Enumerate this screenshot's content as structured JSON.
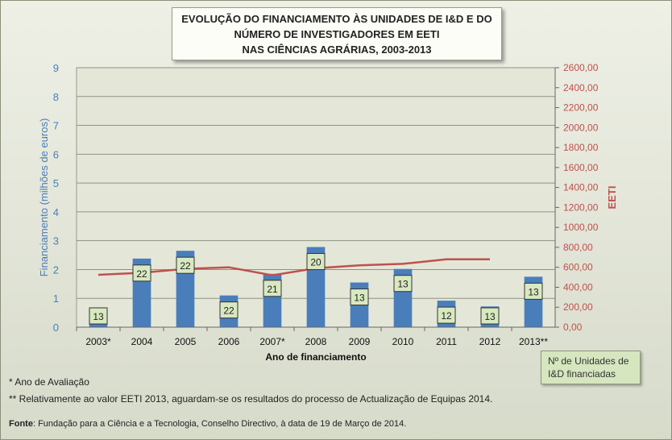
{
  "title": {
    "line1": "EVOLUÇÃO DO FINANCIAMENTO ÀS UNIDADES DE I&D E DO",
    "line2": "NÚMERO DE INVESTIGADORES EM EETI",
    "line3": "NAS CIÊNCIAS AGRÁRIAS, 2003-2013"
  },
  "legend_label": "Nº de Unidades de I&D  financiadas",
  "notes": {
    "note1": "* Ano de Avaliação",
    "note2": "** Relativamente ao valor EETI 2013, aguardam-se os resultados do processo de Actualização de Equipas 2014."
  },
  "source": {
    "label": "Fonte",
    "text": ": Fundação para a Ciência e a Tecnologia, Conselho Directivo, à data de 19 de Março de 2014."
  },
  "colors": {
    "bars": "#4a7ebb",
    "line": "#c0504d",
    "left_axis_text": "#4a7ebb",
    "right_axis_text": "#c0504d",
    "label_box": "#d8e8c0"
  },
  "chart_data": {
    "type": "bar+line",
    "categories": [
      "2003*",
      "2004",
      "2005",
      "2006",
      "2007*",
      "2008",
      "2009",
      "2010",
      "2011",
      "2012",
      "2013**"
    ],
    "xlabel": "Ano de financiamento",
    "ylabel_left": "Financiamento (milhões de euros)",
    "ylabel_right": "EETI",
    "ylim_left": [
      0,
      9
    ],
    "ylim_right": [
      0,
      2600
    ],
    "y_ticks_left": [
      "0",
      "1",
      "2",
      "3",
      "4",
      "5",
      "6",
      "7",
      "8",
      "9"
    ],
    "y_ticks_right": [
      "0,00",
      "200,00",
      "400,00",
      "600,00",
      "800,00",
      "1000,00",
      "1200,00",
      "1400,00",
      "1600,00",
      "1800,00",
      "2000,00",
      "2200,00",
      "2400,00",
      "2600,00"
    ],
    "grid": true,
    "series": [
      {
        "type": "bar",
        "axis": "left",
        "values": [
          0.12,
          2.38,
          2.65,
          1.1,
          1.85,
          2.78,
          1.55,
          2.02,
          0.92,
          0.72,
          1.75
        ],
        "labels": [
          "13",
          "22",
          "22",
          "22",
          "21",
          "20",
          "13",
          "13",
          "12",
          "13",
          "13"
        ]
      },
      {
        "type": "line",
        "axis": "right",
        "values": [
          525,
          545,
          585,
          600,
          520,
          590,
          620,
          635,
          680,
          680,
          null
        ]
      }
    ]
  }
}
